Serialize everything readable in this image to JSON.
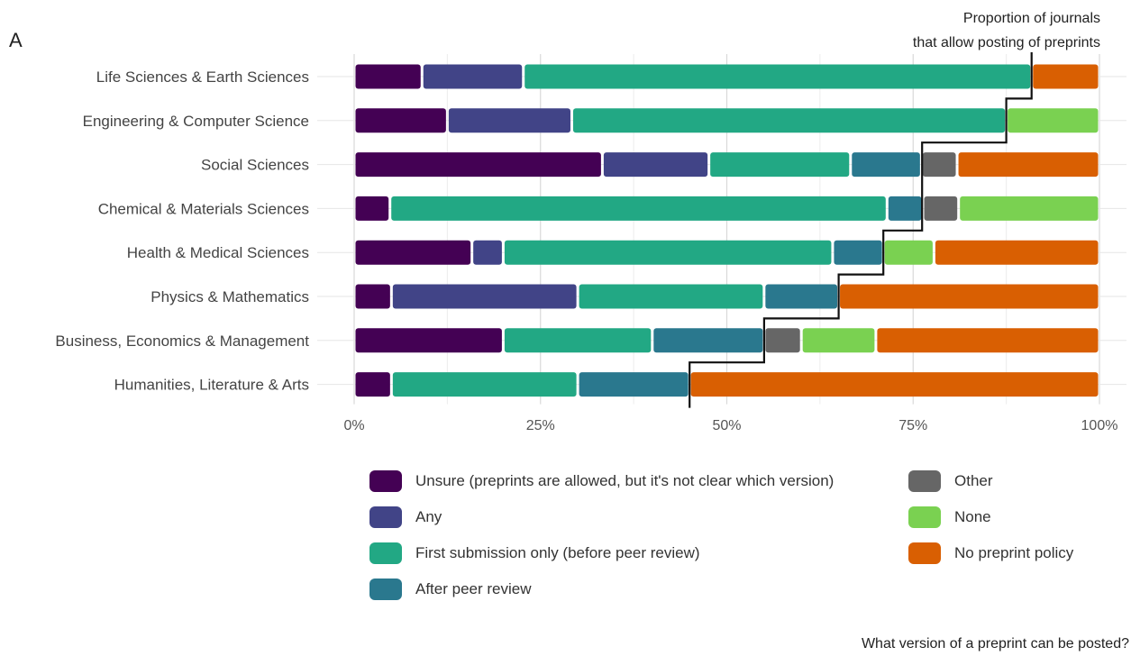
{
  "panel_label": "A",
  "footer_caption": "What version of a preprint can be posted?",
  "chart_data": {
    "type": "bar",
    "orientation": "horizontal",
    "stacked": true,
    "stack_normalized": true,
    "title": "",
    "xlabel": "",
    "ylabel": "",
    "xlim": [
      0,
      100
    ],
    "x_ticks": [
      "0%",
      "25%",
      "50%",
      "75%",
      "100%"
    ],
    "x_tick_values": [
      0,
      25,
      50,
      75,
      100
    ],
    "grid": true,
    "legend_position": "bottom",
    "categories": [
      "Life Sciences & Earth Sciences",
      "Engineering & Computer Science",
      "Social Sciences",
      "Chemical & Materials Sciences",
      "Health & Medical Sciences",
      "Physics & Mathematics",
      "Business, Economics & Management",
      "Humanities, Literature & Arts"
    ],
    "series": [
      {
        "name": "Unsure (preprints are allowed, but it's not clear which version)",
        "color": "#440154",
        "values": [
          9.1,
          12.5,
          33.3,
          4.8,
          15.8,
          5.0,
          20.0,
          5.0
        ]
      },
      {
        "name": "Any",
        "color": "#414487",
        "values": [
          13.6,
          16.7,
          14.3,
          0,
          4.2,
          25.0,
          0,
          0
        ]
      },
      {
        "name": "First submission only (before peer review)",
        "color": "#22a884",
        "values": [
          68.2,
          58.3,
          19.0,
          66.7,
          44.2,
          25.0,
          20.0,
          25.0
        ]
      },
      {
        "name": "After peer review",
        "color": "#2a788e",
        "values": [
          0,
          0,
          9.5,
          4.8,
          6.8,
          10.0,
          15.0,
          15.0
        ]
      },
      {
        "name": "Other",
        "color": "#666666",
        "values": [
          0,
          0,
          4.8,
          4.8,
          0,
          0,
          5.0,
          0
        ]
      },
      {
        "name": "None",
        "color": "#7ad151",
        "values": [
          0,
          12.5,
          0,
          18.9,
          6.8,
          0,
          10.0,
          0
        ]
      },
      {
        "name": "No preprint policy",
        "color": "#d95f02",
        "values": [
          9.1,
          0,
          19.1,
          0,
          22.2,
          35.0,
          30.0,
          55.0
        ]
      }
    ],
    "annotation": {
      "text_lines": [
        "Proportion of journals",
        "that allow posting of preprints"
      ],
      "type": "step-line",
      "description_values": [
        90.9,
        87.5,
        76.2,
        76.2,
        71.0,
        65.0,
        55.0,
        45.0
      ]
    },
    "legend_layout": [
      {
        "series": 0,
        "col": 0,
        "row": 0
      },
      {
        "series": 1,
        "col": 0,
        "row": 1
      },
      {
        "series": 2,
        "col": 0,
        "row": 2
      },
      {
        "series": 3,
        "col": 0,
        "row": 3
      },
      {
        "series": 4,
        "col": 1,
        "row": 0
      },
      {
        "series": 5,
        "col": 1,
        "row": 1
      },
      {
        "series": 6,
        "col": 1,
        "row": 2
      }
    ]
  }
}
